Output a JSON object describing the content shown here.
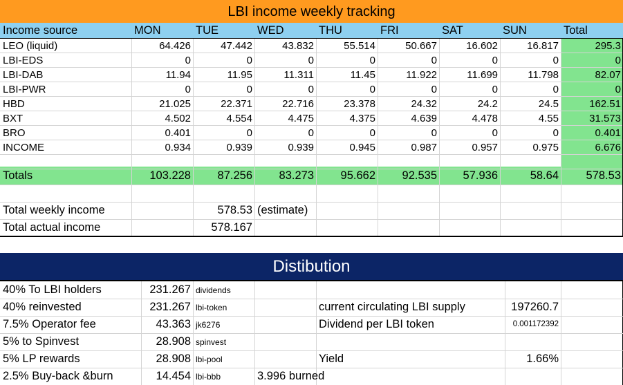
{
  "colors": {
    "title_bg": "#ff9a1f",
    "header_bg": "#8ed0f0",
    "totals_bg": "#82e48f",
    "dist_bg": "#0c2566",
    "dist_text": "#ffffff"
  },
  "title": "LBI income weekly tracking",
  "headers": [
    "Income source",
    "MON",
    "TUE",
    "WED",
    "THU",
    "FRI",
    "SAT",
    "SUN",
    "Total"
  ],
  "rows": [
    {
      "source": "LEO (liquid)",
      "values": [
        "64.426",
        "47.442",
        "43.832",
        "55.514",
        "50.667",
        "16.602",
        "16.817"
      ],
      "total": "295.3"
    },
    {
      "source": "LBI-EDS",
      "values": [
        "0",
        "0",
        "0",
        "0",
        "0",
        "0",
        "0"
      ],
      "total": "0"
    },
    {
      "source": "LBI-DAB",
      "values": [
        "11.94",
        "11.95",
        "11.311",
        "11.45",
        "11.922",
        "11.699",
        "11.798"
      ],
      "total": "82.07"
    },
    {
      "source": "LBI-PWR",
      "values": [
        "0",
        "0",
        "0",
        "0",
        "0",
        "0",
        "0"
      ],
      "total": "0"
    },
    {
      "source": "HBD",
      "values": [
        "21.025",
        "22.371",
        "22.716",
        "23.378",
        "24.32",
        "24.2",
        "24.5"
      ],
      "total": "162.51"
    },
    {
      "source": "BXT",
      "values": [
        "4.502",
        "4.554",
        "4.475",
        "4.375",
        "4.639",
        "4.478",
        "4.55"
      ],
      "total": "31.573"
    },
    {
      "source": "BRO",
      "values": [
        "0.401",
        "0",
        "0",
        "0",
        "0",
        "0",
        "0"
      ],
      "total": "0.401"
    },
    {
      "source": "INCOME",
      "values": [
        "0.934",
        "0.939",
        "0.939",
        "0.945",
        "0.987",
        "0.957",
        "0.975"
      ],
      "total": "6.676"
    }
  ],
  "totals": {
    "label": "Totals",
    "values": [
      "103.228",
      "87.256",
      "83.273",
      "95.662",
      "92.535",
      "57.936",
      "58.64"
    ],
    "total": "578.53"
  },
  "weekly": {
    "label": "Total weekly income",
    "value": "578.53",
    "note": "(estimate)"
  },
  "actual": {
    "label": "Total actual income",
    "value": "578.167"
  },
  "distribution": {
    "title": "Distibution",
    "rows": [
      {
        "label": "40% To LBI holders",
        "amount": "231.267",
        "account": "dividends"
      },
      {
        "label": "40% reinvested",
        "amount": "231.267",
        "account": "lbi-token"
      },
      {
        "label": "7.5% Operator fee",
        "amount": "43.363",
        "account": "jk6276"
      },
      {
        "label": "5% to Spinvest",
        "amount": "28.908",
        "account": "spinvest"
      },
      {
        "label": "5% LP rewards",
        "amount": "28.908",
        "account": "lbi-pool"
      },
      {
        "label": "2.5% Buy-back &burn",
        "amount": "14.454",
        "account": "lbi-bbb",
        "note": "3.996 burned"
      }
    ],
    "supply_label": "current circulating LBI supply",
    "supply_value": "197260.7",
    "dividend_label": "Dividend per LBI token",
    "dividend_value": "0.001172392",
    "yield_label": "Yield",
    "yield_value": "1.66%"
  }
}
